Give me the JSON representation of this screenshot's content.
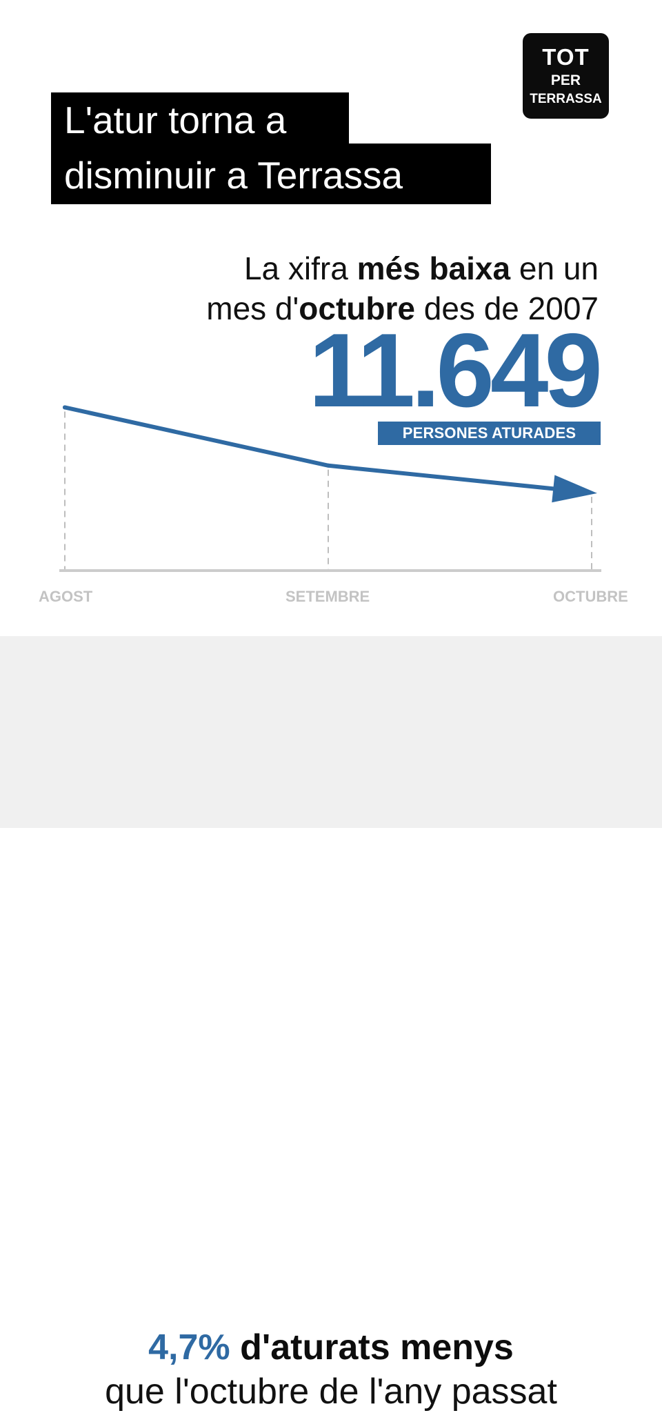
{
  "logo": {
    "line1": "TOT",
    "line2": "PER",
    "line3": "TERRASSA"
  },
  "title": {
    "line1": "L'atur torna a",
    "line2": "disminuir a Terrassa"
  },
  "subtitle": {
    "line1_pre": "La xifra ",
    "line1_bold": "més baixa",
    "line1_post": " en un",
    "line2_pre": "mes d'",
    "line2_bold": "octubre",
    "line2_post": " des de 2007"
  },
  "highlight": {
    "value": "11.649",
    "unit": "PERSONES ATURADES"
  },
  "chart_data": {
    "type": "line",
    "categories": [
      "AGOST",
      "SETEMBRE",
      "OCTUBRE"
    ],
    "series": [
      {
        "values": [
          12250,
          11840,
          11649
        ]
      }
    ],
    "colors": {
      "line": "#2f6aa3",
      "axis": "#cccccc",
      "label": "#c3c3c3"
    }
  },
  "footer": {
    "pct": "4,7%",
    "line1_rest": " d'aturats menys",
    "line2": "que l'octubre de l'any passat"
  }
}
